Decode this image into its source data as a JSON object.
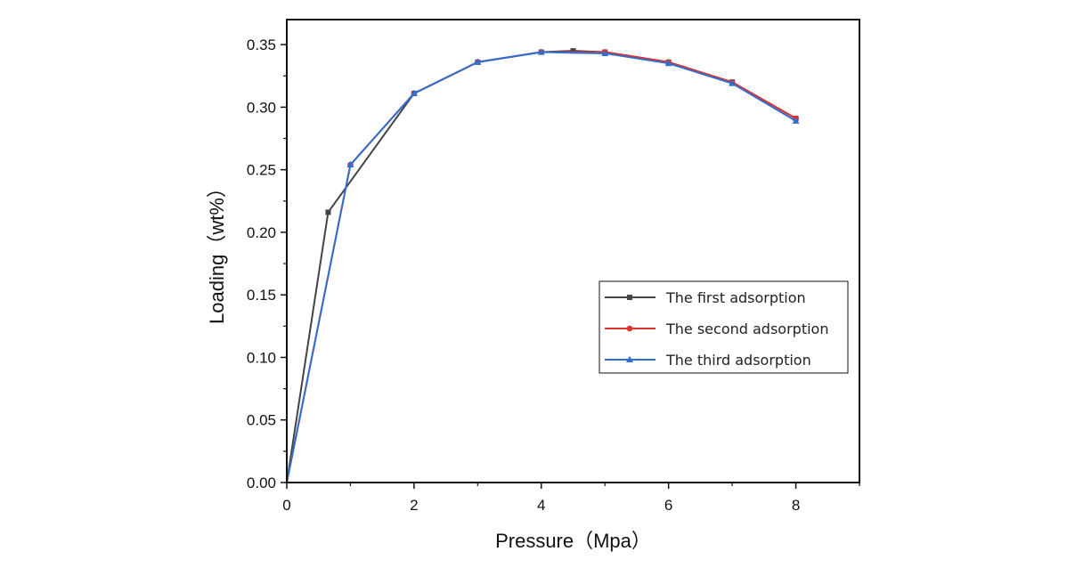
{
  "chart_data": {
    "type": "line",
    "xlabel": "Pressure（Mpa）",
    "ylabel": "Loading（wt%）",
    "xlim": [
      0,
      9
    ],
    "ylim": [
      0,
      0.37
    ],
    "xticks": [
      0,
      2,
      4,
      6,
      8
    ],
    "xtick_labels": [
      "0",
      "2",
      "4",
      "6",
      "8"
    ],
    "yticks": [
      0,
      0.05,
      0.1,
      0.15,
      0.2,
      0.25,
      0.3,
      0.35
    ],
    "ytick_labels": [
      "0.00",
      "0.05",
      "0.10",
      "0.15",
      "0.20",
      "0.25",
      "0.30",
      "0.35"
    ],
    "grid": false,
    "legend_position": "center-right",
    "series": [
      {
        "name": "The first adsorption",
        "color": "#444444",
        "marker": "square",
        "x": [
          0,
          0.65,
          2,
          3,
          4,
          4.5,
          5,
          6,
          7,
          8
        ],
        "y": [
          0,
          0.216,
          0.311,
          0.336,
          0.344,
          0.345,
          0.344,
          0.336,
          0.32,
          0.291
        ]
      },
      {
        "name": "The second adsorption",
        "color": "#e03030",
        "marker": "circle",
        "x": [
          0,
          1,
          2,
          3,
          4,
          5,
          6,
          7,
          8
        ],
        "y": [
          0,
          0.254,
          0.311,
          0.336,
          0.344,
          0.344,
          0.336,
          0.32,
          0.291
        ]
      },
      {
        "name": "The third adsorption",
        "color": "#2e6fd0",
        "marker": "triangle",
        "x": [
          0,
          1,
          2,
          3,
          4,
          5,
          6,
          7,
          8
        ],
        "y": [
          0,
          0.254,
          0.311,
          0.336,
          0.344,
          0.343,
          0.335,
          0.319,
          0.289
        ]
      }
    ]
  }
}
